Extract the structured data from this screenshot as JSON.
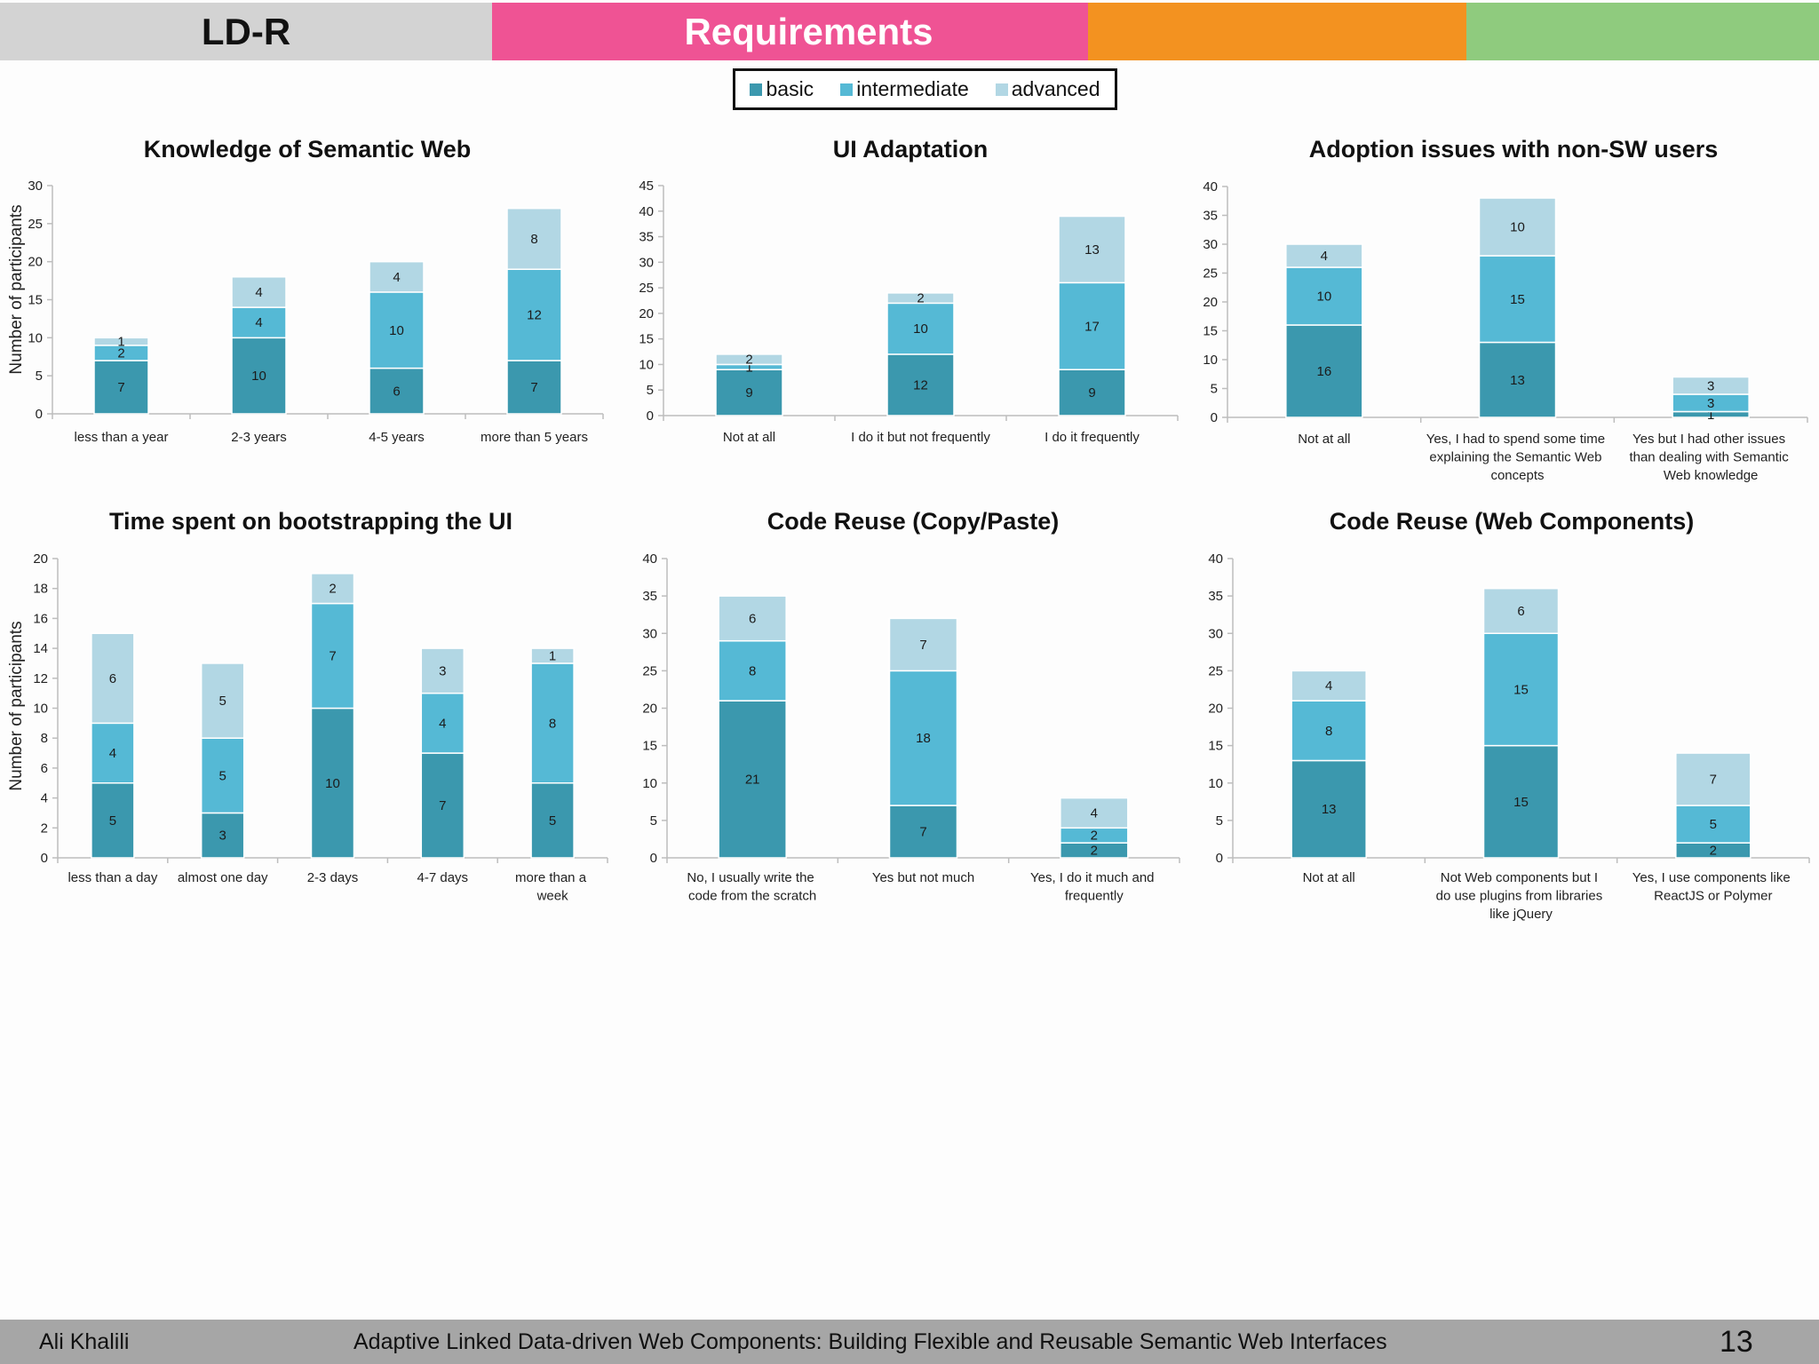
{
  "header": {
    "section_label": "LD-R",
    "title": "Requirements",
    "colors": {
      "gray": "#d3d3d3",
      "pink": "#ef5394",
      "orange": "#f39220",
      "green": "#8fcb7e"
    }
  },
  "legend": {
    "items": [
      {
        "label": "basic",
        "color": "#3b98ae"
      },
      {
        "label": "intermediate",
        "color": "#55b9d5"
      },
      {
        "label": "advanced",
        "color": "#b2d7e4"
      }
    ]
  },
  "chart_data": [
    {
      "type": "bar",
      "stacked": true,
      "title": "Knowledge of Semantic Web",
      "ylabel": "Number of participants",
      "ylim": [
        0,
        30
      ],
      "yticks": [
        0,
        5,
        10,
        15,
        20,
        25,
        30
      ],
      "categories": [
        "less than a year",
        "2-3 years",
        "4-5 years",
        "more than 5 years"
      ],
      "series": [
        {
          "name": "basic",
          "values": [
            7,
            10,
            6,
            7
          ]
        },
        {
          "name": "intermediate",
          "values": [
            2,
            4,
            10,
            12
          ]
        },
        {
          "name": "advanced",
          "values": [
            1,
            4,
            4,
            8
          ]
        }
      ]
    },
    {
      "type": "bar",
      "stacked": true,
      "title": "UI Adaptation",
      "ylim": [
        0,
        45
      ],
      "yticks": [
        0,
        5,
        10,
        15,
        20,
        25,
        30,
        35,
        40,
        45
      ],
      "categories": [
        "Not at all",
        "I do it but not frequently",
        "I do it frequently"
      ],
      "series": [
        {
          "name": "basic",
          "values": [
            9,
            12,
            9
          ]
        },
        {
          "name": "intermediate",
          "values": [
            1,
            10,
            17
          ]
        },
        {
          "name": "advanced",
          "values": [
            2,
            2,
            13
          ]
        }
      ]
    },
    {
      "type": "bar",
      "stacked": true,
      "title": "Adoption issues with non-SW users",
      "ylim": [
        0,
        40
      ],
      "yticks": [
        0,
        5,
        10,
        15,
        20,
        25,
        30,
        35,
        40
      ],
      "categories": [
        "Not at all",
        "Yes, I had to spend some time\nexplaining the Semantic Web\nconcepts",
        "Yes but I had other issues\nthan dealing with Semantic\nWeb knowledge"
      ],
      "series": [
        {
          "name": "basic",
          "values": [
            16,
            13,
            1
          ]
        },
        {
          "name": "intermediate",
          "values": [
            10,
            15,
            3
          ]
        },
        {
          "name": "advanced",
          "values": [
            4,
            10,
            3
          ]
        }
      ]
    },
    {
      "type": "bar",
      "stacked": true,
      "title": "Time spent on bootstrapping the UI",
      "ylabel": "Number of participants",
      "ylim": [
        0,
        20
      ],
      "yticks": [
        0,
        2,
        4,
        6,
        8,
        10,
        12,
        14,
        16,
        18,
        20
      ],
      "categories": [
        "less than a day",
        "almost one day",
        "2-3 days",
        "4-7 days",
        "more than a\nweek"
      ],
      "series": [
        {
          "name": "basic",
          "values": [
            5,
            3,
            10,
            7,
            5
          ]
        },
        {
          "name": "intermediate",
          "values": [
            4,
            5,
            7,
            4,
            8
          ]
        },
        {
          "name": "advanced",
          "values": [
            6,
            5,
            2,
            3,
            1
          ]
        }
      ]
    },
    {
      "type": "bar",
      "stacked": true,
      "title": "Code Reuse (Copy/Paste)",
      "ylim": [
        0,
        40
      ],
      "yticks": [
        0,
        5,
        10,
        15,
        20,
        25,
        30,
        35,
        40
      ],
      "categories": [
        "No, I usually write the\ncode from the scratch",
        "Yes but not much",
        "Yes, I do it much and\nfrequently"
      ],
      "series": [
        {
          "name": "basic",
          "values": [
            21,
            7,
            2
          ]
        },
        {
          "name": "intermediate",
          "values": [
            8,
            18,
            2
          ]
        },
        {
          "name": "advanced",
          "values": [
            6,
            7,
            4
          ]
        }
      ]
    },
    {
      "type": "bar",
      "stacked": true,
      "title": "Code Reuse (Web Components)",
      "ylim": [
        0,
        40
      ],
      "yticks": [
        0,
        5,
        10,
        15,
        20,
        25,
        30,
        35,
        40
      ],
      "categories": [
        "Not at all",
        "Not Web components but I\ndo use plugins from libraries\nlike jQuery",
        "Yes, I use components like\nReactJS or Polymer"
      ],
      "series": [
        {
          "name": "basic",
          "values": [
            13,
            15,
            2
          ]
        },
        {
          "name": "intermediate",
          "values": [
            8,
            15,
            5
          ]
        },
        {
          "name": "advanced",
          "values": [
            4,
            6,
            7
          ]
        }
      ]
    }
  ],
  "footer": {
    "author": "Ali Khalili",
    "talk_title": "Adaptive Linked Data-driven Web Components: Building Flexible and Reusable Semantic Web Interfaces",
    "page_number": "13"
  }
}
